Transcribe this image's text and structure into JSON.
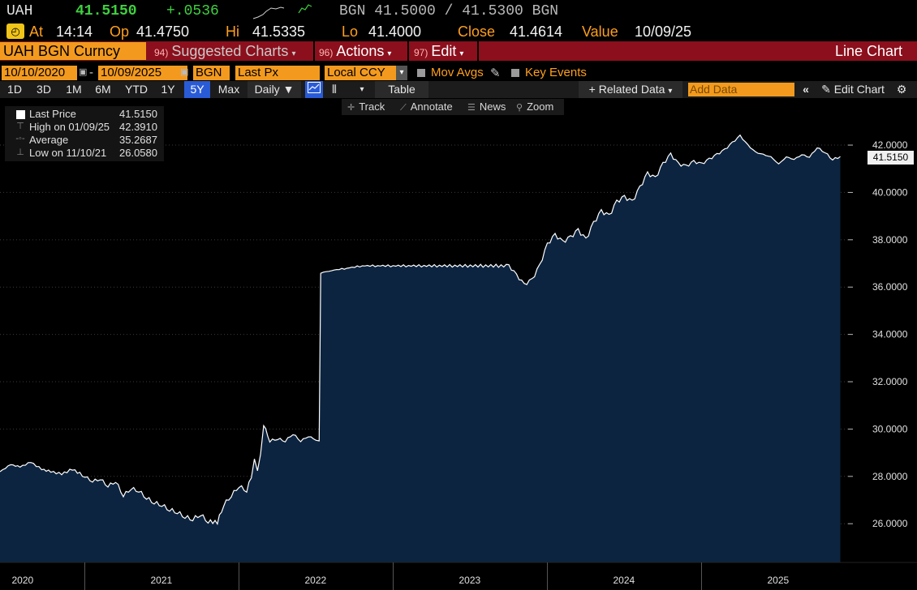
{
  "quote": {
    "ticker": "UAH",
    "last": "41.5150",
    "change": "+.0536",
    "bid_ask": "BGN 41.5000 / 41.5300 BGN"
  },
  "stats": {
    "at_label": "At",
    "at_value": "14:14",
    "op_label": "Op",
    "op_value": "41.4750",
    "hi_label": "Hi",
    "hi_value": "41.5335",
    "lo_label": "Lo",
    "lo_value": "41.4000",
    "close_label": "Close",
    "close_value": "41.4614",
    "value_label": "Value",
    "value_value": "10/09/25"
  },
  "cmdbar": {
    "security": "UAH BGN Curncy",
    "suggested_num": "94)",
    "suggested_label": "Suggested Charts",
    "actions_num": "96)",
    "actions_label": "Actions",
    "edit_num": "97)",
    "edit_label": "Edit",
    "title": "Line Chart"
  },
  "settings": {
    "start_date": "10/10/2020",
    "end_date": "10/09/2025",
    "source": "BGN",
    "field": "Last Px",
    "currency": "Local CCY",
    "mov_avgs": "Mov Avgs",
    "key_events": "Key Events"
  },
  "ranges": {
    "items": [
      "1D",
      "3D",
      "1M",
      "6M",
      "YTD",
      "1Y",
      "5Y",
      "Max"
    ],
    "active": "5Y",
    "frequency": "Daily",
    "table": "Table",
    "related_data": "+ Related Data",
    "add_data_placeholder": "Add Data",
    "edit_chart": "Edit Chart"
  },
  "tools": {
    "track": "Track",
    "annotate": "Annotate",
    "news": "News",
    "zoom": "Zoom"
  },
  "legend": {
    "last_label": "Last Price",
    "last_value": "41.5150",
    "high_label": "High on 01/09/25",
    "high_value": "42.3910",
    "avg_label": "Average",
    "avg_value": "35.2687",
    "low_label": "Low on 11/10/21",
    "low_value": "26.0580"
  },
  "colors": {
    "area_fill": "#0c2440",
    "line": "#ffffff",
    "orange": "#f39a1e",
    "red_bar": "#8b0f1c",
    "green": "#3ed13e"
  },
  "chart_data": {
    "type": "area",
    "last_label": "41.5150",
    "ylim": [
      24.5,
      43.2
    ],
    "y_ticks": [
      "26.0000",
      "28.0000",
      "30.0000",
      "32.0000",
      "34.0000",
      "36.0000",
      "38.0000",
      "40.0000",
      "42.0000"
    ],
    "y_tick_values": [
      26,
      28,
      30,
      32,
      34,
      36,
      38,
      40,
      42
    ],
    "x_labels": [
      "2020",
      "2021",
      "2022",
      "2023",
      "2024",
      "2025"
    ],
    "x_label_positions": [
      2020.6,
      2021.5,
      2022.5,
      2023.5,
      2024.5,
      2025.5
    ],
    "xlim": [
      2020.45,
      2025.95
    ],
    "year_boundaries": [
      2021,
      2022,
      2023,
      2024,
      2025
    ],
    "series": [
      {
        "x": [
          2020.45,
          2020.52,
          2020.58,
          2020.65,
          2020.72,
          2020.78,
          2020.85,
          2020.92,
          2021.0,
          2021.05,
          2021.1,
          2021.15,
          2021.2,
          2021.25,
          2021.3,
          2021.35,
          2021.4,
          2021.45,
          2021.5,
          2021.55,
          2021.6,
          2021.65,
          2021.7,
          2021.75,
          2021.8,
          2021.86,
          2021.9,
          2021.95,
          2022.0,
          2022.05,
          2022.08,
          2022.1,
          2022.12,
          2022.14,
          2022.16,
          2022.2,
          2022.25,
          2022.3,
          2022.35,
          2022.4,
          2022.45,
          2022.5,
          2022.52,
          2022.53,
          2022.6,
          2022.7,
          2022.8,
          2022.9,
          2023.0,
          2023.1,
          2023.2,
          2023.3,
          2023.4,
          2023.5,
          2023.6,
          2023.7,
          2023.75,
          2023.8,
          2023.85,
          2023.9,
          2023.95,
          2024.0,
          2024.05,
          2024.1,
          2024.15,
          2024.2,
          2024.25,
          2024.3,
          2024.35,
          2024.4,
          2024.45,
          2024.5,
          2024.55,
          2024.6,
          2024.65,
          2024.7,
          2024.75,
          2024.8,
          2024.85,
          2024.9,
          2024.95,
          2025.0,
          2025.05,
          2025.1,
          2025.15,
          2025.2,
          2025.25,
          2025.3,
          2025.35,
          2025.4,
          2025.45,
          2025.5,
          2025.55,
          2025.6,
          2025.65,
          2025.7,
          2025.75,
          2025.8,
          2025.85,
          2025.9
        ],
        "y": [
          28.2,
          28.5,
          28.4,
          28.6,
          28.3,
          28.2,
          28.1,
          28.3,
          28.0,
          27.8,
          27.9,
          27.6,
          27.8,
          27.2,
          27.5,
          27.4,
          27.1,
          26.9,
          26.8,
          26.6,
          26.5,
          26.3,
          26.2,
          26.4,
          26.1,
          26.06,
          26.8,
          27.2,
          27.6,
          27.4,
          28.0,
          28.8,
          28.3,
          29.0,
          30.2,
          29.5,
          29.6,
          29.5,
          29.8,
          29.5,
          29.7,
          29.55,
          29.5,
          36.6,
          36.7,
          36.8,
          36.9,
          36.9,
          36.9,
          36.9,
          36.9,
          36.9,
          36.9,
          36.9,
          36.9,
          36.9,
          36.9,
          36.5,
          36.1,
          36.3,
          36.9,
          37.8,
          38.2,
          37.9,
          38.1,
          38.4,
          38.0,
          38.7,
          39.2,
          39.0,
          39.6,
          39.8,
          39.6,
          40.2,
          40.8,
          40.6,
          41.2,
          41.6,
          41.2,
          41.1,
          41.3,
          41.2,
          41.4,
          41.6,
          41.8,
          42.1,
          42.39,
          42.0,
          41.7,
          41.6,
          41.5,
          41.2,
          41.5,
          41.4,
          41.6,
          41.5,
          41.9,
          41.7,
          41.4,
          41.515
        ]
      }
    ]
  }
}
